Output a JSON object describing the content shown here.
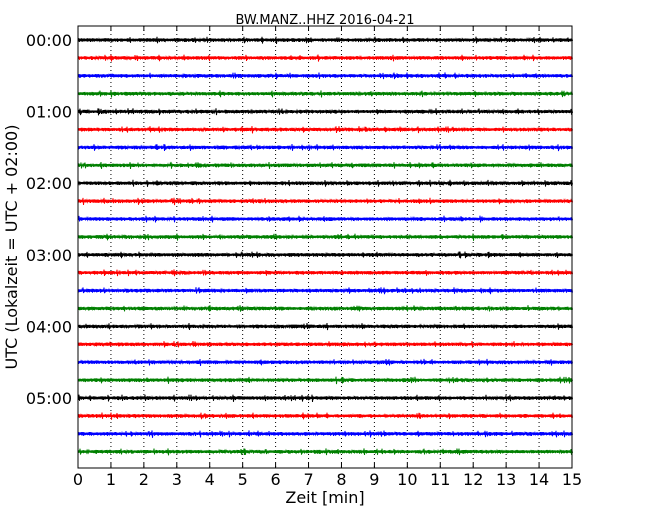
{
  "chart_data": {
    "type": "line",
    "title": "BW.MANZ..HHZ 2016-04-21",
    "xlabel": "Zeit  [min]",
    "ylabel": "UTC (Lokalzeit = UTC + 02:00)",
    "xlim": [
      0,
      15
    ],
    "x_ticks": [
      "0",
      "1",
      "2",
      "3",
      "4",
      "5",
      "6",
      "7",
      "8",
      "9",
      "10",
      "11",
      "12",
      "13",
      "14",
      "15"
    ],
    "y_tick_labels": [
      "00:00",
      "01:00",
      "02:00",
      "03:00",
      "04:00",
      "05:00"
    ],
    "grid": {
      "x": "dotted",
      "y": "none"
    },
    "trace_color_cycle": [
      "#000000",
      "#ff0000",
      "#0000ff",
      "#008000"
    ],
    "traces_per_hour": 4,
    "trace_count": 24,
    "trace_start_times": [
      "00:00",
      "00:15",
      "00:30",
      "00:45",
      "01:00",
      "01:15",
      "01:30",
      "01:45",
      "02:00",
      "02:15",
      "02:30",
      "02:45",
      "03:00",
      "03:15",
      "03:30",
      "03:45",
      "04:00",
      "04:15",
      "04:30",
      "04:45",
      "05:00",
      "05:15",
      "05:30",
      "05:45"
    ]
  }
}
